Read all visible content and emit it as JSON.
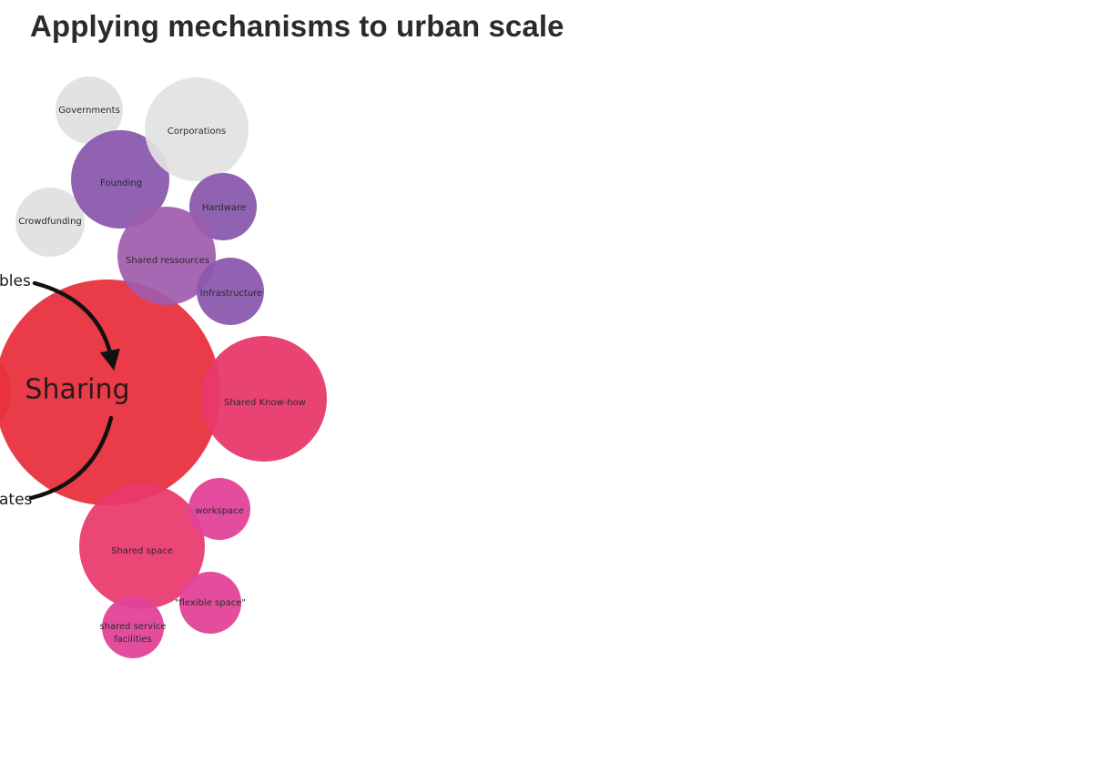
{
  "title": "Applying mechanisms to urban scale",
  "hub": {
    "label": "Sharing",
    "color": "#e8323e"
  },
  "side_labels": {
    "top": "bles",
    "bottom": "ates"
  },
  "bubbles": {
    "governments": {
      "label": "Governments",
      "color": "#e3e2e3"
    },
    "corporations": {
      "label": "Corporations",
      "color": "#e3e2e3"
    },
    "crowdfunding": {
      "label": "Crowdfunding",
      "color": "#e3e2e3"
    },
    "founding": {
      "label": "Founding",
      "color": "#8a5aad"
    },
    "hardware": {
      "label": "Hardware",
      "color": "#8a5aad"
    },
    "shared_ressources": {
      "label": "Shared ressources",
      "color": "#a05bad"
    },
    "infrastructure": {
      "label": "Infrastructure",
      "color": "#8a5aad"
    },
    "shared_knowhow": {
      "label": "Shared Know-how",
      "color": "#e8396c"
    },
    "shared_space": {
      "label": "Shared space",
      "color": "#e8396c"
    },
    "workspace": {
      "label": "workspace",
      "color": "#e34398"
    },
    "flexible_space": {
      "label": "\"flexible space\"",
      "color": "#e34398"
    },
    "shared_service_line1": "shared service",
    "shared_service_line2": "facilities",
    "shared_service_color": "#e34398"
  }
}
